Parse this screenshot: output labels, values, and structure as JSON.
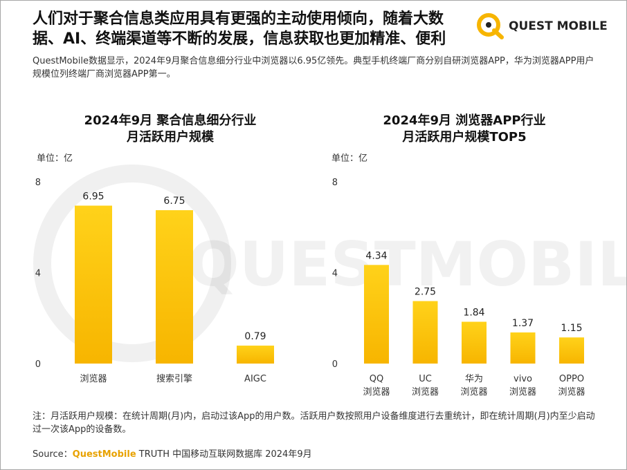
{
  "header": {
    "headline": "人们对于聚合信息类应用具有更强的主动使用倾向，随着大数据、AI、终端渠道等不断的发展，信息获取也更加精准、便利",
    "subtitle": "QuestMobile数据显示，2024年9月聚合信息细分行业中浏览器以6.95亿领先。典型手机终端厂商分别自研浏览器APP，华为浏览器APP用户规模位列终端厂商浏览器APP第一。",
    "logo_text": "QUEST MOBILE",
    "watermark_text": "QUESTMOBILE"
  },
  "colors": {
    "bar_top": "#ffd21a",
    "bar_bottom": "#f7b500",
    "accent": "#e8a200"
  },
  "chart_data": [
    {
      "type": "bar",
      "title_line1": "2024年9月 聚合信息细分行业",
      "title_line2": "月活跃用户规模",
      "unit": "单位：亿",
      "categories": [
        [
          "浏览器"
        ],
        [
          "搜索引擎"
        ],
        [
          "AIGC"
        ]
      ],
      "values": [
        6.95,
        6.75,
        0.79
      ],
      "data_labels": [
        "6.95",
        "6.75",
        "0.79"
      ],
      "y_ticks": [
        0,
        4,
        8
      ],
      "ylim": [
        0,
        8
      ]
    },
    {
      "type": "bar",
      "title_line1": "2024年9月 浏览器APP行业",
      "title_line2": "月活跃用户规模TOP5",
      "unit": "单位：亿",
      "categories": [
        [
          "QQ",
          "浏览器"
        ],
        [
          "UC",
          "浏览器"
        ],
        [
          "华为",
          "浏览器"
        ],
        [
          "vivo",
          "浏览器"
        ],
        [
          "OPPO",
          "浏览器"
        ]
      ],
      "values": [
        4.34,
        2.75,
        1.84,
        1.37,
        1.15
      ],
      "data_labels": [
        "4.34",
        "2.75",
        "1.84",
        "1.37",
        "1.15"
      ],
      "y_ticks": [
        0,
        4,
        8
      ],
      "ylim": [
        0,
        8
      ]
    }
  ],
  "footnote": "注：月活跃用户规模：在统计周期(月)内，启动过该App的用户数。活跃用户数按照用户设备维度进行去重统计，即在统计周期(月)内至少启动过一次该App的设备数。",
  "source": {
    "prefix": "Source：",
    "brand": "QuestMobile",
    "text": " TRUTH 中国移动互联网数据库 2024年9月"
  }
}
